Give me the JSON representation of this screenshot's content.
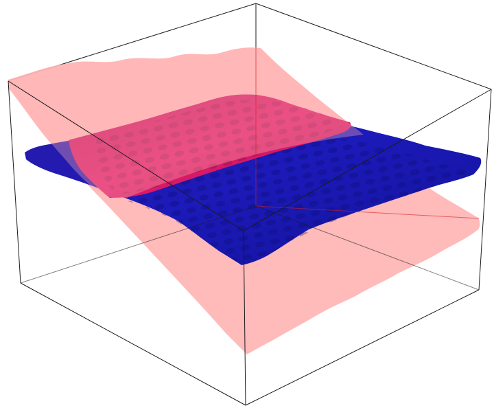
{
  "scene": {
    "type": "3d-surface-plot",
    "background": "#ffffff",
    "box": {
      "visible": true,
      "color": "#1a1a1a"
    },
    "surfaces": [
      {
        "id": "plane",
        "color": "#ffb3b3",
        "opacity": 0.85,
        "shape": "tilted rippled plane"
      },
      {
        "id": "wavy-surface",
        "color": "#1a1ab0",
        "highlight_color": "#e0206a",
        "shape": "rippled sheet"
      }
    ]
  }
}
